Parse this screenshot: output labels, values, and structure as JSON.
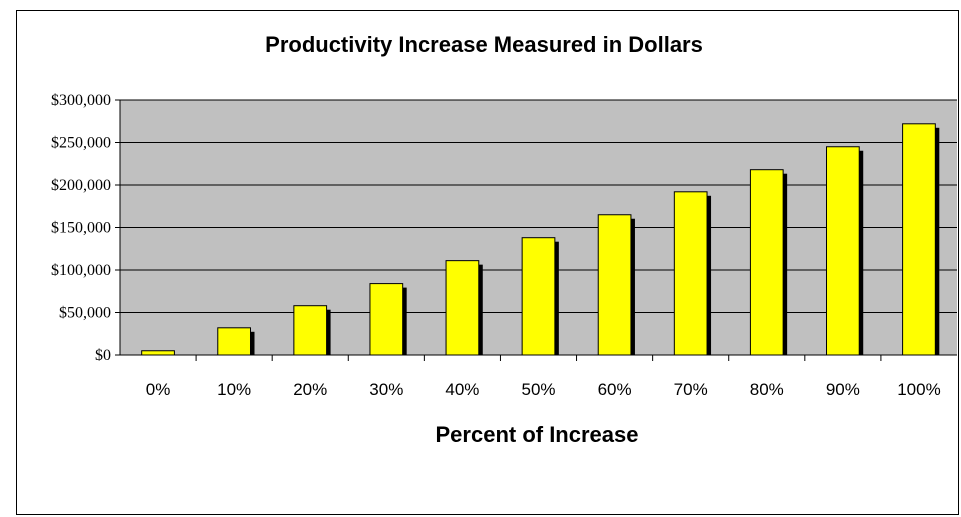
{
  "chart_data": {
    "type": "bar",
    "title": "Productivity Increase Measured in Dollars",
    "xlabel": "Percent of Increase",
    "ylabel": "",
    "categories": [
      "0%",
      "10%",
      "20%",
      "30%",
      "40%",
      "50%",
      "60%",
      "70%",
      "80%",
      "90%",
      "100%"
    ],
    "values": [
      5000,
      32000,
      58000,
      84000,
      111000,
      138000,
      165000,
      192000,
      218000,
      245000,
      272000
    ],
    "ylim": [
      0,
      300000
    ],
    "yticks": [
      0,
      50000,
      100000,
      150000,
      200000,
      250000,
      300000
    ],
    "ytick_labels": [
      "$0",
      "$50,000",
      "$100,000",
      "$150,000",
      "$200,000",
      "$250,000",
      "$300,000"
    ],
    "grid": true,
    "legend": "none",
    "colors": {
      "bar": "#ffff00",
      "bar_shadow": "#000000",
      "plot_background": "#c0c0c0",
      "gridline": "#000000"
    }
  }
}
